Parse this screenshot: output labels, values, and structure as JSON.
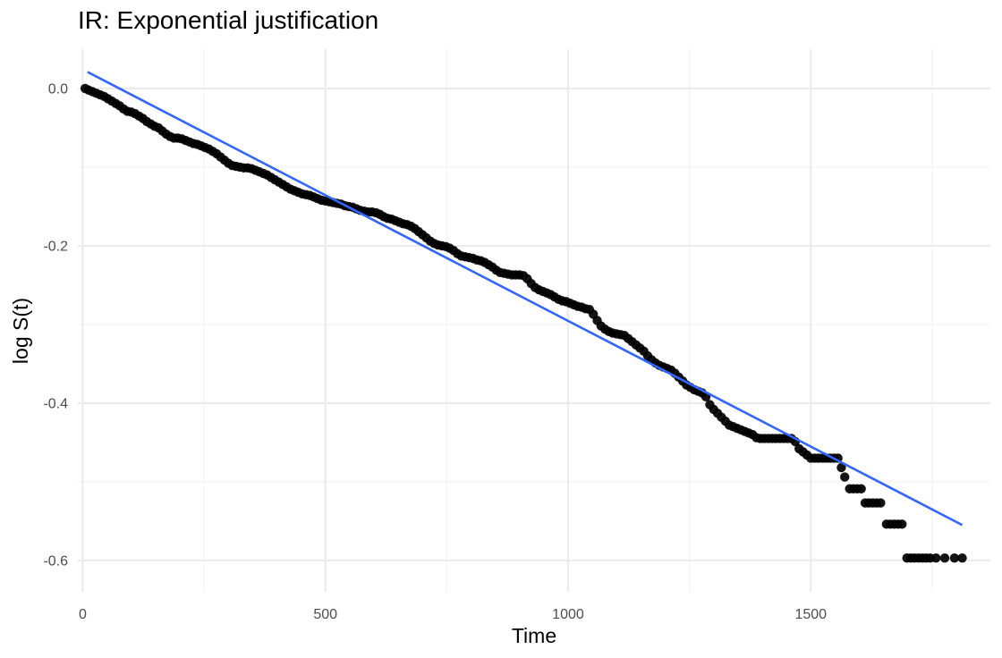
{
  "chart_data": {
    "type": "scatter",
    "title": "IR: Exponential justification",
    "xlabel": "Time",
    "ylabel": "log S(t)",
    "xlim": [
      -10,
      1870
    ],
    "ylim": [
      -0.64,
      0.05
    ],
    "x_ticks": [
      0,
      500,
      1000,
      1500
    ],
    "x_tick_labels": [
      "0",
      "500",
      "1000",
      "1500"
    ],
    "y_ticks": [
      0.0,
      -0.2,
      -0.4,
      -0.6
    ],
    "y_tick_labels": [
      "0.0",
      "-0.2",
      "-0.4",
      "-0.6"
    ],
    "grid": true,
    "legend": "none",
    "series": [
      {
        "type": "scatter",
        "color": "#000000",
        "points": [
          [
            5,
            0.0
          ],
          [
            12,
            -0.002
          ],
          [
            20,
            -0.004
          ],
          [
            28,
            -0.006
          ],
          [
            36,
            -0.008
          ],
          [
            44,
            -0.01
          ],
          [
            52,
            -0.013
          ],
          [
            60,
            -0.016
          ],
          [
            68,
            -0.019
          ],
          [
            76,
            -0.022
          ],
          [
            84,
            -0.026
          ],
          [
            92,
            -0.029
          ],
          [
            100,
            -0.03
          ],
          [
            108,
            -0.032
          ],
          [
            116,
            -0.035
          ],
          [
            124,
            -0.038
          ],
          [
            132,
            -0.042
          ],
          [
            140,
            -0.045
          ],
          [
            148,
            -0.048
          ],
          [
            156,
            -0.05
          ],
          [
            164,
            -0.054
          ],
          [
            172,
            -0.058
          ],
          [
            180,
            -0.061
          ],
          [
            188,
            -0.063
          ],
          [
            196,
            -0.063
          ],
          [
            204,
            -0.064
          ],
          [
            212,
            -0.066
          ],
          [
            220,
            -0.068
          ],
          [
            228,
            -0.07
          ],
          [
            236,
            -0.071
          ],
          [
            244,
            -0.073
          ],
          [
            252,
            -0.075
          ],
          [
            260,
            -0.077
          ],
          [
            268,
            -0.08
          ],
          [
            276,
            -0.083
          ],
          [
            284,
            -0.087
          ],
          [
            292,
            -0.091
          ],
          [
            300,
            -0.095
          ],
          [
            308,
            -0.098
          ],
          [
            316,
            -0.099
          ],
          [
            324,
            -0.1
          ],
          [
            332,
            -0.101
          ],
          [
            340,
            -0.101
          ],
          [
            348,
            -0.102
          ],
          [
            356,
            -0.104
          ],
          [
            364,
            -0.106
          ],
          [
            372,
            -0.108
          ],
          [
            380,
            -0.11
          ],
          [
            388,
            -0.113
          ],
          [
            396,
            -0.116
          ],
          [
            404,
            -0.119
          ],
          [
            412,
            -0.122
          ],
          [
            420,
            -0.125
          ],
          [
            428,
            -0.128
          ],
          [
            436,
            -0.13
          ],
          [
            444,
            -0.132
          ],
          [
            452,
            -0.134
          ],
          [
            460,
            -0.135
          ],
          [
            468,
            -0.136
          ],
          [
            476,
            -0.138
          ],
          [
            484,
            -0.14
          ],
          [
            492,
            -0.142
          ],
          [
            500,
            -0.143
          ],
          [
            508,
            -0.144
          ],
          [
            516,
            -0.145
          ],
          [
            524,
            -0.146
          ],
          [
            532,
            -0.147
          ],
          [
            540,
            -0.149
          ],
          [
            548,
            -0.15
          ],
          [
            556,
            -0.151
          ],
          [
            564,
            -0.153
          ],
          [
            572,
            -0.155
          ],
          [
            580,
            -0.156
          ],
          [
            588,
            -0.157
          ],
          [
            596,
            -0.157
          ],
          [
            604,
            -0.158
          ],
          [
            612,
            -0.16
          ],
          [
            620,
            -0.163
          ],
          [
            628,
            -0.165
          ],
          [
            636,
            -0.166
          ],
          [
            644,
            -0.168
          ],
          [
            652,
            -0.17
          ],
          [
            660,
            -0.172
          ],
          [
            668,
            -0.173
          ],
          [
            676,
            -0.175
          ],
          [
            684,
            -0.178
          ],
          [
            692,
            -0.182
          ],
          [
            700,
            -0.186
          ],
          [
            708,
            -0.19
          ],
          [
            716,
            -0.194
          ],
          [
            724,
            -0.197
          ],
          [
            732,
            -0.199
          ],
          [
            740,
            -0.2
          ],
          [
            748,
            -0.201
          ],
          [
            756,
            -0.203
          ],
          [
            764,
            -0.206
          ],
          [
            772,
            -0.21
          ],
          [
            780,
            -0.213
          ],
          [
            788,
            -0.214
          ],
          [
            796,
            -0.215
          ],
          [
            804,
            -0.216
          ],
          [
            812,
            -0.218
          ],
          [
            820,
            -0.219
          ],
          [
            828,
            -0.221
          ],
          [
            836,
            -0.224
          ],
          [
            844,
            -0.227
          ],
          [
            852,
            -0.231
          ],
          [
            860,
            -0.234
          ],
          [
            868,
            -0.235
          ],
          [
            876,
            -0.236
          ],
          [
            884,
            -0.237
          ],
          [
            892,
            -0.237
          ],
          [
            900,
            -0.237
          ],
          [
            908,
            -0.238
          ],
          [
            916,
            -0.242
          ],
          [
            924,
            -0.248
          ],
          [
            932,
            -0.253
          ],
          [
            940,
            -0.256
          ],
          [
            948,
            -0.258
          ],
          [
            956,
            -0.26
          ],
          [
            964,
            -0.262
          ],
          [
            972,
            -0.265
          ],
          [
            980,
            -0.268
          ],
          [
            988,
            -0.27
          ],
          [
            996,
            -0.271
          ],
          [
            1004,
            -0.273
          ],
          [
            1012,
            -0.275
          ],
          [
            1020,
            -0.277
          ],
          [
            1028,
            -0.278
          ],
          [
            1036,
            -0.28
          ],
          [
            1044,
            -0.281
          ],
          [
            1052,
            -0.287
          ],
          [
            1060,
            -0.295
          ],
          [
            1068,
            -0.302
          ],
          [
            1076,
            -0.306
          ],
          [
            1084,
            -0.309
          ],
          [
            1092,
            -0.311
          ],
          [
            1100,
            -0.312
          ],
          [
            1108,
            -0.313
          ],
          [
            1116,
            -0.314
          ],
          [
            1124,
            -0.318
          ],
          [
            1132,
            -0.322
          ],
          [
            1140,
            -0.326
          ],
          [
            1148,
            -0.33
          ],
          [
            1156,
            -0.334
          ],
          [
            1164,
            -0.34
          ],
          [
            1172,
            -0.345
          ],
          [
            1180,
            -0.349
          ],
          [
            1188,
            -0.352
          ],
          [
            1196,
            -0.354
          ],
          [
            1204,
            -0.356
          ],
          [
            1212,
            -0.358
          ],
          [
            1220,
            -0.362
          ],
          [
            1228,
            -0.367
          ],
          [
            1236,
            -0.372
          ],
          [
            1244,
            -0.377
          ],
          [
            1252,
            -0.38
          ],
          [
            1260,
            -0.383
          ],
          [
            1268,
            -0.385
          ],
          [
            1276,
            -0.387
          ],
          [
            1284,
            -0.392
          ],
          [
            1292,
            -0.402
          ],
          [
            1300,
            -0.408
          ],
          [
            1308,
            -0.413
          ],
          [
            1316,
            -0.418
          ],
          [
            1324,
            -0.423
          ],
          [
            1332,
            -0.428
          ],
          [
            1340,
            -0.43
          ],
          [
            1348,
            -0.432
          ],
          [
            1356,
            -0.434
          ],
          [
            1364,
            -0.436
          ],
          [
            1372,
            -0.438
          ],
          [
            1380,
            -0.44
          ],
          [
            1388,
            -0.444
          ],
          [
            1396,
            -0.445
          ],
          [
            1404,
            -0.445
          ],
          [
            1412,
            -0.445
          ],
          [
            1420,
            -0.445
          ],
          [
            1428,
            -0.445
          ],
          [
            1436,
            -0.445
          ],
          [
            1444,
            -0.445
          ],
          [
            1452,
            -0.445
          ],
          [
            1460,
            -0.445
          ],
          [
            1468,
            -0.449
          ],
          [
            1476,
            -0.458
          ],
          [
            1484,
            -0.462
          ],
          [
            1492,
            -0.466
          ],
          [
            1500,
            -0.47
          ],
          [
            1508,
            -0.47
          ],
          [
            1516,
            -0.47
          ],
          [
            1524,
            -0.47
          ],
          [
            1532,
            -0.47
          ],
          [
            1540,
            -0.47
          ],
          [
            1548,
            -0.47
          ],
          [
            1556,
            -0.47
          ],
          [
            1563,
            -0.482
          ],
          [
            1570,
            -0.494
          ],
          [
            1580,
            -0.509
          ],
          [
            1588,
            -0.509
          ],
          [
            1596,
            -0.509
          ],
          [
            1604,
            -0.509
          ],
          [
            1612,
            -0.527
          ],
          [
            1620,
            -0.527
          ],
          [
            1628,
            -0.527
          ],
          [
            1636,
            -0.527
          ],
          [
            1644,
            -0.527
          ],
          [
            1656,
            -0.554
          ],
          [
            1664,
            -0.554
          ],
          [
            1672,
            -0.554
          ],
          [
            1680,
            -0.554
          ],
          [
            1688,
            -0.554
          ],
          [
            1698,
            -0.597
          ],
          [
            1706,
            -0.597
          ],
          [
            1714,
            -0.597
          ],
          [
            1722,
            -0.597
          ],
          [
            1730,
            -0.597
          ],
          [
            1738,
            -0.597
          ],
          [
            1746,
            -0.597
          ],
          [
            1758,
            -0.597
          ],
          [
            1776,
            -0.597
          ],
          [
            1796,
            -0.597
          ],
          [
            1812,
            -0.597
          ]
        ]
      },
      {
        "type": "line",
        "color": "#3366ff",
        "points": [
          [
            10,
            0.021
          ],
          [
            1812,
            -0.555
          ]
        ]
      }
    ]
  }
}
